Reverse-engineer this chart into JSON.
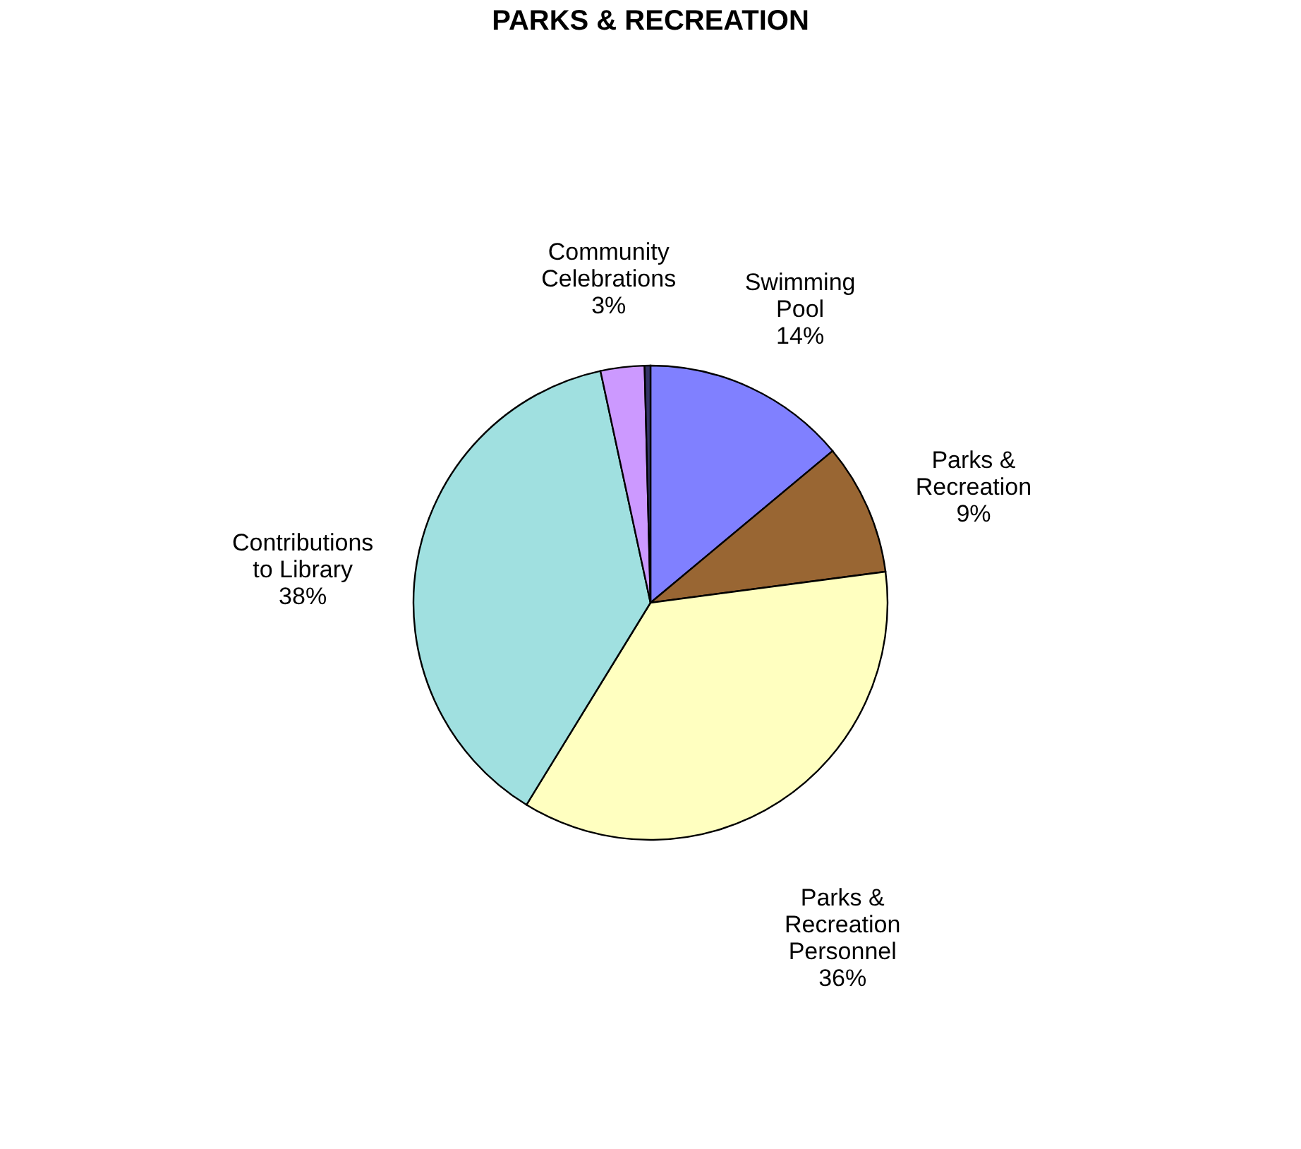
{
  "chart_data": {
    "type": "pie",
    "title": "PARKS & RECREATION",
    "categories": [
      "Swimming Pool",
      "Parks & Recreation",
      "Parks & Recreation Personnel",
      "Contributions to Library",
      "Community Celebrations",
      null
    ],
    "values": [
      14,
      9,
      36,
      38,
      3,
      0.4
    ],
    "value_labels": [
      "14%",
      "9%",
      "36%",
      "38%",
      "3%",
      null
    ],
    "colors": [
      "#8080ff",
      "#996633",
      "#ffffc0",
      "#a0e0e0",
      "#cc99ff",
      "#333366"
    ],
    "legend": false
  }
}
